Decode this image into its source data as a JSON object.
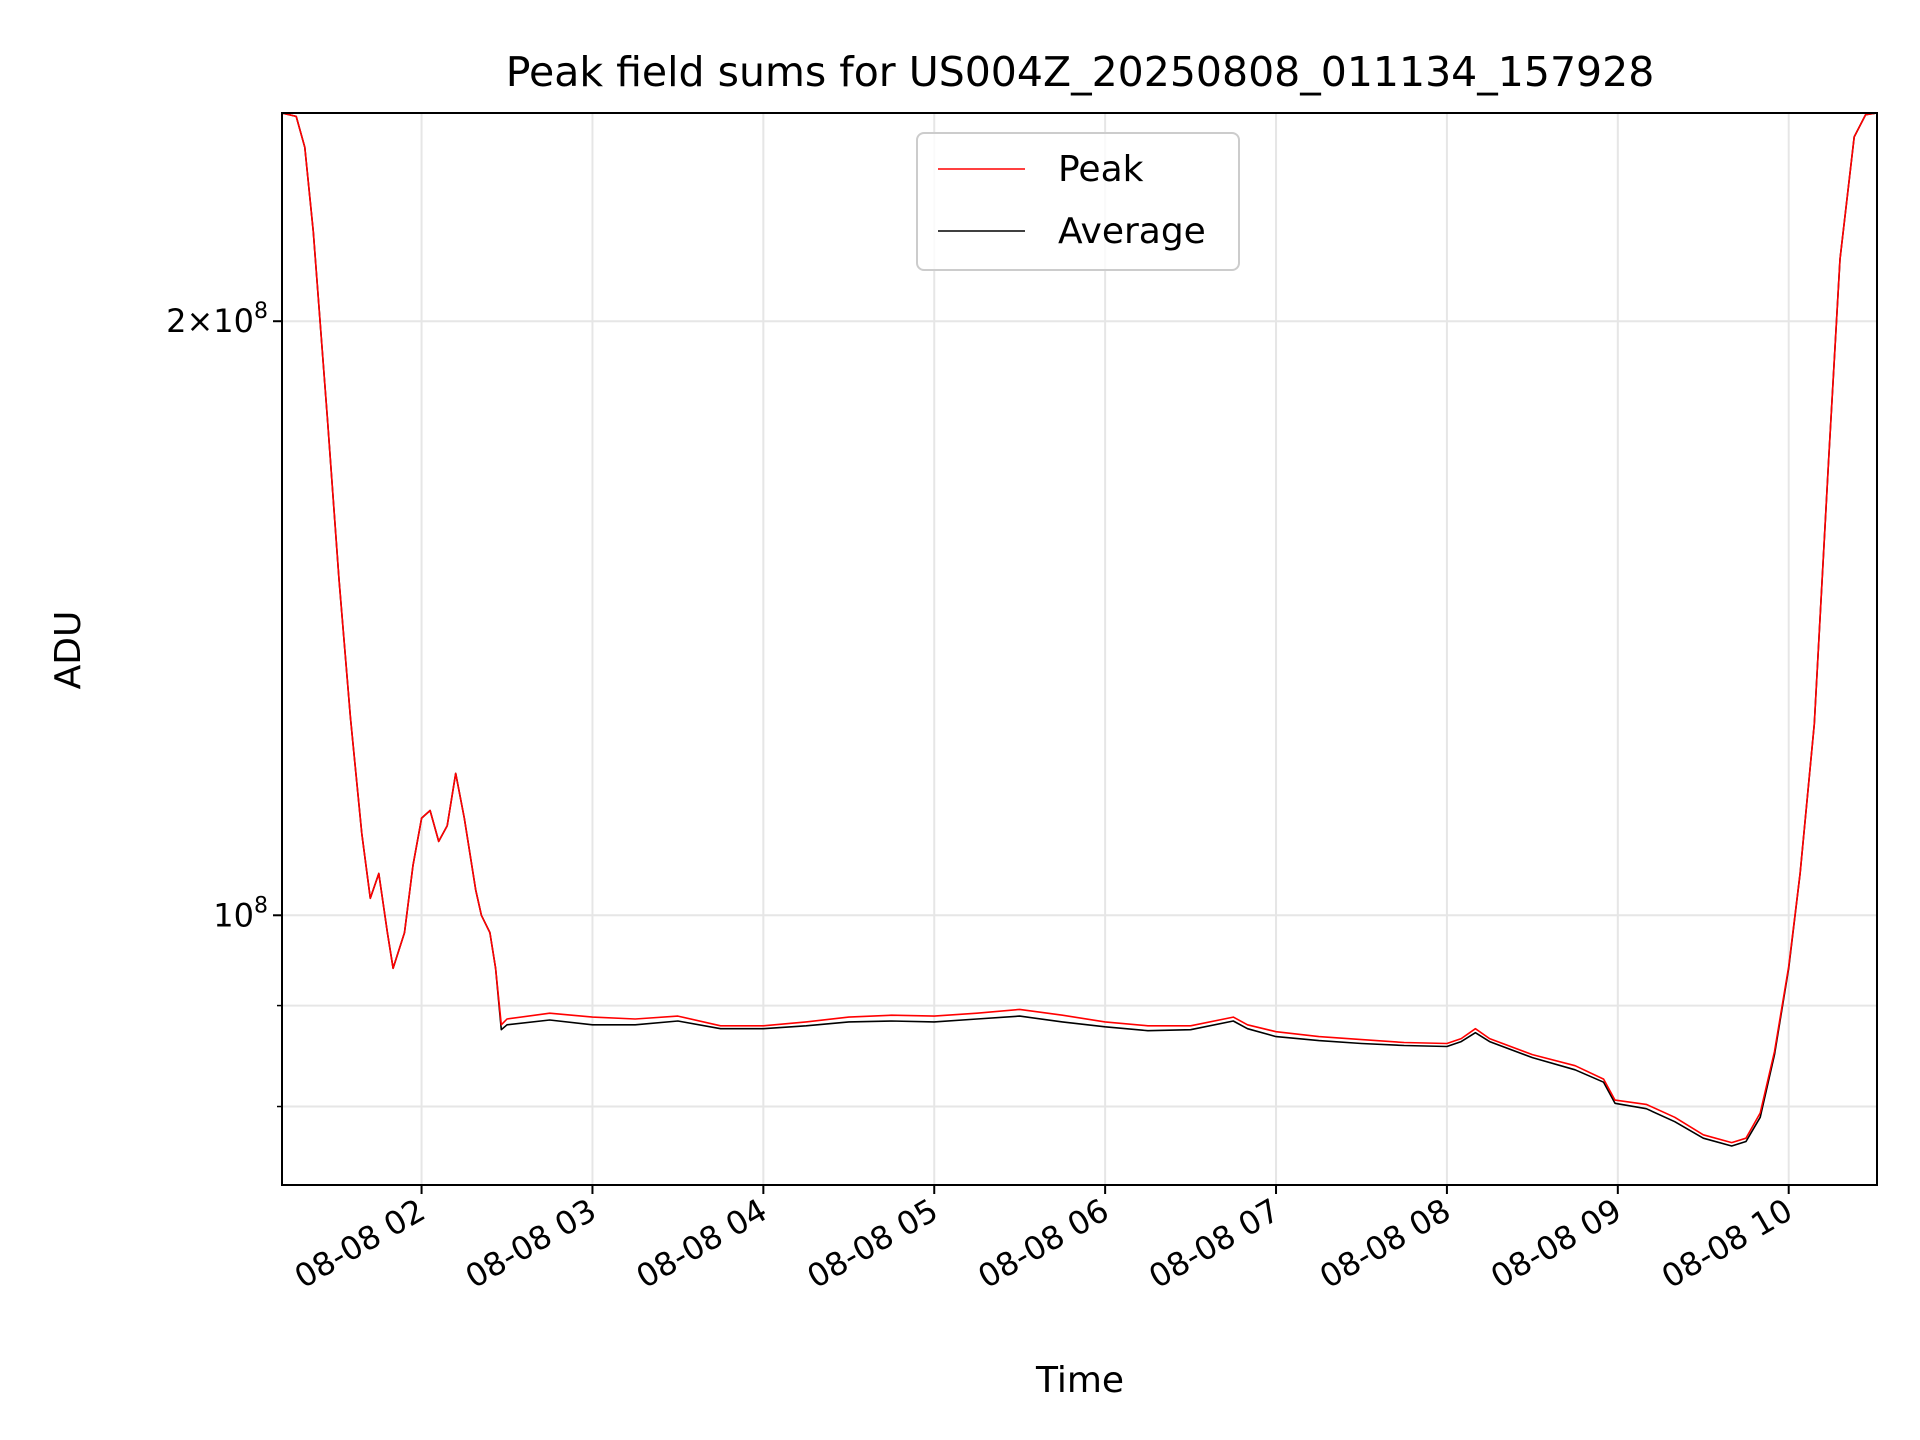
{
  "chart_data": {
    "type": "line",
    "title": "Peak field sums for US004Z_20250808_011134_157928",
    "xlabel": "Time",
    "ylabel": "ADU",
    "y_scale": "log",
    "xlim": [
      "2025-08-08 01:11",
      "2025-08-08 10:31"
    ],
    "ylim": [
      73000000,
      255000000
    ],
    "x_ticks": [
      "2025-08-08 02:00",
      "2025-08-08 03:00",
      "2025-08-08 04:00",
      "2025-08-08 05:00",
      "2025-08-08 06:00",
      "2025-08-08 07:00",
      "2025-08-08 08:00",
      "2025-08-08 09:00",
      "2025-08-08 10:00"
    ],
    "x_tick_labels": [
      "08-08 02",
      "08-08 03",
      "08-08 04",
      "08-08 05",
      "08-08 06",
      "08-08 07",
      "08-08 08",
      "08-08 09",
      "08-08 10"
    ],
    "y_major_ticks": [
      100000000,
      200000000
    ],
    "y_major_tick_labels": [
      {
        "mantissa": "",
        "exp": "8"
      },
      {
        "mantissa": "2×",
        "exp": "8"
      }
    ],
    "y_minor_ticks": [
      80000000,
      90000000
    ],
    "grid": true,
    "legend_position": "upper center",
    "colors": {
      "Peak": "#ff0000",
      "Average": "#000000",
      "grid": "#e6e6e6"
    },
    "series": [
      {
        "name": "Average",
        "color": "#000000",
        "points": [
          [
            "2025-08-08 01:11",
            255000000
          ],
          [
            "2025-08-08 01:16",
            254000000
          ],
          [
            "2025-08-08 01:19",
            245000000
          ],
          [
            "2025-08-08 01:22",
            222000000
          ],
          [
            "2025-08-08 01:27",
            178000000
          ],
          [
            "2025-08-08 01:31",
            148000000
          ],
          [
            "2025-08-08 01:35",
            126000000
          ],
          [
            "2025-08-08 01:39",
            110000000
          ],
          [
            "2025-08-08 01:42",
            102000000
          ],
          [
            "2025-08-08 01:45",
            105000000
          ],
          [
            "2025-08-08 01:48",
            98000000
          ],
          [
            "2025-08-08 01:50",
            94000000
          ],
          [
            "2025-08-08 01:54",
            98000000
          ],
          [
            "2025-08-08 01:57",
            106000000
          ],
          [
            "2025-08-08 02:00",
            112000000
          ],
          [
            "2025-08-08 02:03",
            113000000
          ],
          [
            "2025-08-08 02:06",
            109000000
          ],
          [
            "2025-08-08 02:09",
            111000000
          ],
          [
            "2025-08-08 02:12",
            118000000
          ],
          [
            "2025-08-08 02:15",
            112000000
          ],
          [
            "2025-08-08 02:19",
            103000000
          ],
          [
            "2025-08-08 02:21",
            100000000
          ],
          [
            "2025-08-08 02:24",
            98000000
          ],
          [
            "2025-08-08 02:26",
            94000000
          ],
          [
            "2025-08-08 02:28",
            87500000
          ],
          [
            "2025-08-08 02:30",
            88000000
          ],
          [
            "2025-08-08 02:45",
            88500000
          ],
          [
            "2025-08-08 03:00",
            88000000
          ],
          [
            "2025-08-08 03:15",
            88000000
          ],
          [
            "2025-08-08 03:30",
            88400000
          ],
          [
            "2025-08-08 03:45",
            87600000
          ],
          [
            "2025-08-08 04:00",
            87600000
          ],
          [
            "2025-08-08 04:15",
            87900000
          ],
          [
            "2025-08-08 04:30",
            88300000
          ],
          [
            "2025-08-08 04:45",
            88400000
          ],
          [
            "2025-08-08 05:00",
            88300000
          ],
          [
            "2025-08-08 05:15",
            88600000
          ],
          [
            "2025-08-08 05:30",
            88900000
          ],
          [
            "2025-08-08 05:45",
            88300000
          ],
          [
            "2025-08-08 06:00",
            87800000
          ],
          [
            "2025-08-08 06:15",
            87400000
          ],
          [
            "2025-08-08 06:30",
            87500000
          ],
          [
            "2025-08-08 06:45",
            88400000
          ],
          [
            "2025-08-08 06:50",
            87600000
          ],
          [
            "2025-08-08 07:00",
            86800000
          ],
          [
            "2025-08-08 07:15",
            86400000
          ],
          [
            "2025-08-08 07:30",
            86100000
          ],
          [
            "2025-08-08 07:45",
            85900000
          ],
          [
            "2025-08-08 08:00",
            85800000
          ],
          [
            "2025-08-08 08:05",
            86300000
          ],
          [
            "2025-08-08 08:10",
            87200000
          ],
          [
            "2025-08-08 08:15",
            86300000
          ],
          [
            "2025-08-08 08:30",
            84700000
          ],
          [
            "2025-08-08 08:45",
            83500000
          ],
          [
            "2025-08-08 08:55",
            82300000
          ],
          [
            "2025-08-08 08:59",
            80300000
          ],
          [
            "2025-08-08 09:10",
            79800000
          ],
          [
            "2025-08-08 09:20",
            78600000
          ],
          [
            "2025-08-08 09:30",
            77100000
          ],
          [
            "2025-08-08 09:40",
            76400000
          ],
          [
            "2025-08-08 09:45",
            76800000
          ],
          [
            "2025-08-08 09:50",
            79000000
          ],
          [
            "2025-08-08 09:55",
            85000000
          ],
          [
            "2025-08-08 10:00",
            94000000
          ],
          [
            "2025-08-08 10:04",
            105000000
          ],
          [
            "2025-08-08 10:09",
            125000000
          ],
          [
            "2025-08-08 10:14",
            170000000
          ],
          [
            "2025-08-08 10:18",
            215000000
          ],
          [
            "2025-08-08 10:23",
            248000000
          ],
          [
            "2025-08-08 10:27",
            254500000
          ],
          [
            "2025-08-08 10:31",
            255000000
          ]
        ]
      },
      {
        "name": "Peak",
        "color": "#ff0000",
        "points": [
          [
            "2025-08-08 01:11",
            255000000
          ],
          [
            "2025-08-08 01:16",
            254000000
          ],
          [
            "2025-08-08 01:19",
            245000000
          ],
          [
            "2025-08-08 01:22",
            222000000
          ],
          [
            "2025-08-08 01:27",
            178000000
          ],
          [
            "2025-08-08 01:31",
            148000000
          ],
          [
            "2025-08-08 01:35",
            126000000
          ],
          [
            "2025-08-08 01:39",
            110000000
          ],
          [
            "2025-08-08 01:42",
            102000000
          ],
          [
            "2025-08-08 01:45",
            105000000
          ],
          [
            "2025-08-08 01:48",
            98000000
          ],
          [
            "2025-08-08 01:50",
            94000000
          ],
          [
            "2025-08-08 01:54",
            98000000
          ],
          [
            "2025-08-08 01:57",
            106000000
          ],
          [
            "2025-08-08 02:00",
            112000000
          ],
          [
            "2025-08-08 02:03",
            113000000
          ],
          [
            "2025-08-08 02:06",
            109000000
          ],
          [
            "2025-08-08 02:09",
            111000000
          ],
          [
            "2025-08-08 02:12",
            118000000
          ],
          [
            "2025-08-08 02:15",
            112000000
          ],
          [
            "2025-08-08 02:19",
            103000000
          ],
          [
            "2025-08-08 02:21",
            100000000
          ],
          [
            "2025-08-08 02:24",
            98000000
          ],
          [
            "2025-08-08 02:26",
            94000000
          ],
          [
            "2025-08-08 02:28",
            88000000
          ],
          [
            "2025-08-08 02:30",
            88600000
          ],
          [
            "2025-08-08 02:45",
            89200000
          ],
          [
            "2025-08-08 03:00",
            88800000
          ],
          [
            "2025-08-08 03:15",
            88600000
          ],
          [
            "2025-08-08 03:30",
            88900000
          ],
          [
            "2025-08-08 03:45",
            87900000
          ],
          [
            "2025-08-08 04:00",
            87900000
          ],
          [
            "2025-08-08 04:15",
            88300000
          ],
          [
            "2025-08-08 04:30",
            88800000
          ],
          [
            "2025-08-08 04:45",
            89000000
          ],
          [
            "2025-08-08 05:00",
            88900000
          ],
          [
            "2025-08-08 05:15",
            89200000
          ],
          [
            "2025-08-08 05:30",
            89600000
          ],
          [
            "2025-08-08 05:45",
            89000000
          ],
          [
            "2025-08-08 06:00",
            88300000
          ],
          [
            "2025-08-08 06:15",
            87900000
          ],
          [
            "2025-08-08 06:30",
            87900000
          ],
          [
            "2025-08-08 06:45",
            88800000
          ],
          [
            "2025-08-08 06:50",
            88000000
          ],
          [
            "2025-08-08 07:00",
            87300000
          ],
          [
            "2025-08-08 07:15",
            86800000
          ],
          [
            "2025-08-08 07:30",
            86500000
          ],
          [
            "2025-08-08 07:45",
            86200000
          ],
          [
            "2025-08-08 08:00",
            86100000
          ],
          [
            "2025-08-08 08:05",
            86600000
          ],
          [
            "2025-08-08 08:10",
            87600000
          ],
          [
            "2025-08-08 08:15",
            86600000
          ],
          [
            "2025-08-08 08:30",
            85000000
          ],
          [
            "2025-08-08 08:45",
            83900000
          ],
          [
            "2025-08-08 08:55",
            82600000
          ],
          [
            "2025-08-08 08:59",
            80600000
          ],
          [
            "2025-08-08 09:10",
            80200000
          ],
          [
            "2025-08-08 09:20",
            79000000
          ],
          [
            "2025-08-08 09:30",
            77400000
          ],
          [
            "2025-08-08 09:40",
            76700000
          ],
          [
            "2025-08-08 09:45",
            77100000
          ],
          [
            "2025-08-08 09:50",
            79400000
          ],
          [
            "2025-08-08 09:55",
            85300000
          ],
          [
            "2025-08-08 10:00",
            94200000
          ],
          [
            "2025-08-08 10:04",
            105000000
          ],
          [
            "2025-08-08 10:09",
            125000000
          ],
          [
            "2025-08-08 10:14",
            170000000
          ],
          [
            "2025-08-08 10:18",
            215000000
          ],
          [
            "2025-08-08 10:23",
            248000000
          ],
          [
            "2025-08-08 10:27",
            254500000
          ],
          [
            "2025-08-08 10:31",
            255000000
          ]
        ]
      }
    ]
  }
}
